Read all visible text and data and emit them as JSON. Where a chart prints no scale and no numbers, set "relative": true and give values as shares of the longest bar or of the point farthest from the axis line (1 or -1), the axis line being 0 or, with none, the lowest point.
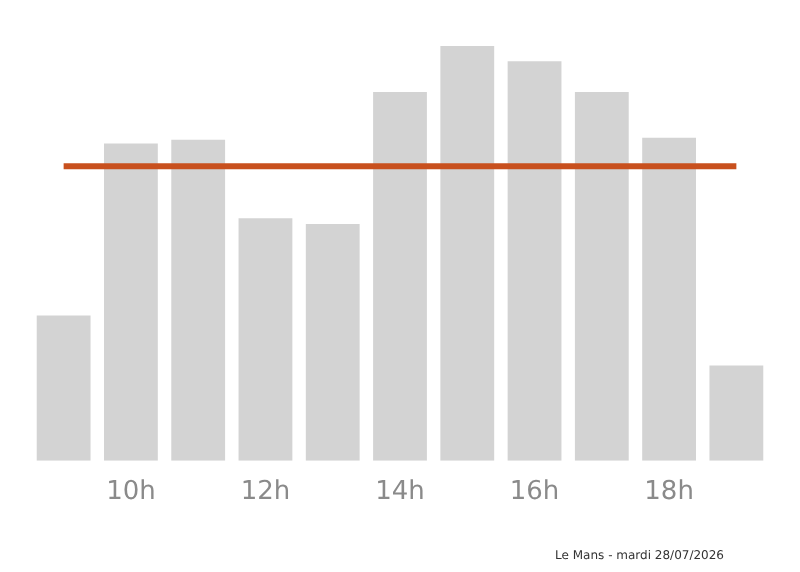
{
  "chart_data": {
    "type": "bar",
    "relative": true,
    "categories": [
      null,
      "10h",
      null,
      "12h",
      null,
      "14h",
      null,
      "16h",
      null,
      "18h",
      null
    ],
    "values": [
      0.35,
      0.765,
      0.774,
      0.585,
      0.571,
      0.889,
      1,
      0.963,
      0.889,
      0.779,
      0.23
    ],
    "color": "#d3d3d3",
    "ref_lines": [
      {
        "axis": "y",
        "value": 0.71,
        "color": "#c8501e"
      }
    ],
    "annotations": [
      "Le Mans - mardi 28/07/2026"
    ],
    "legend": false
  }
}
